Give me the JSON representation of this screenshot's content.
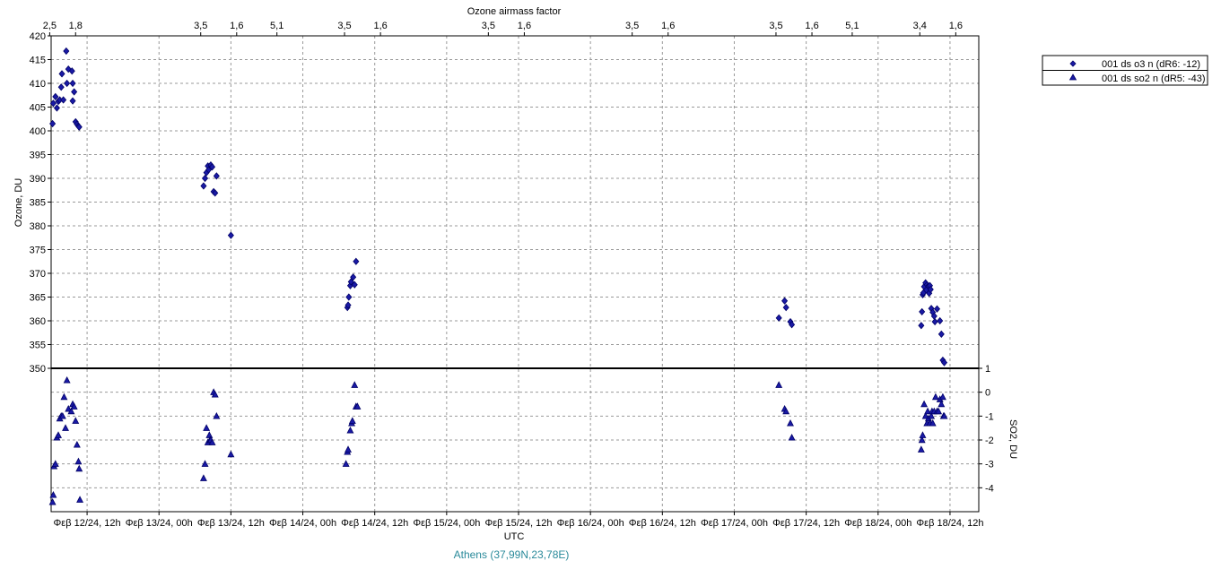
{
  "chart_data": {
    "type": "scatter",
    "top_axis_title": "Ozone airmass factor",
    "top_ticks": [
      {
        "t": 12.24,
        "label": "2,5"
      },
      {
        "t": 12.42,
        "label": "1,8"
      },
      {
        "t": 13.29,
        "label": "3,5"
      },
      {
        "t": 13.54,
        "label": "1,6"
      },
      {
        "t": 13.82,
        "label": "5,1"
      },
      {
        "t": 14.29,
        "label": "3,5"
      },
      {
        "t": 14.54,
        "label": "1,6"
      },
      {
        "t": 15.29,
        "label": "3,5"
      },
      {
        "t": 15.54,
        "label": "1,6"
      },
      {
        "t": 16.29,
        "label": "3,5"
      },
      {
        "t": 16.54,
        "label": "1,6"
      },
      {
        "t": 17.29,
        "label": "3,5"
      },
      {
        "t": 17.54,
        "label": "1,6"
      },
      {
        "t": 17.82,
        "label": "5,1"
      },
      {
        "t": 18.29,
        "label": "3,4"
      },
      {
        "t": 18.54,
        "label": "1,6"
      }
    ],
    "x_axis_title": "UTC",
    "x_ticks": [
      {
        "t": 12.5,
        "label": "Φεβ 12/24, 12h"
      },
      {
        "t": 13.0,
        "label": "Φεβ 13/24, 00h"
      },
      {
        "t": 13.5,
        "label": "Φεβ 13/24, 12h"
      },
      {
        "t": 14.0,
        "label": "Φεβ 14/24, 00h"
      },
      {
        "t": 14.5,
        "label": "Φεβ 14/24, 12h"
      },
      {
        "t": 15.0,
        "label": "Φεβ 15/24, 00h"
      },
      {
        "t": 15.5,
        "label": "Φεβ 15/24, 12h"
      },
      {
        "t": 16.0,
        "label": "Φεβ 16/24, 00h"
      },
      {
        "t": 16.5,
        "label": "Φεβ 16/24, 12h"
      },
      {
        "t": 17.0,
        "label": "Φεβ 17/24, 00h"
      },
      {
        "t": 17.5,
        "label": "Φεβ 17/24, 12h"
      },
      {
        "t": 18.0,
        "label": "Φεβ 18/24, 00h"
      },
      {
        "t": 18.5,
        "label": "Φεβ 18/24, 12h"
      }
    ],
    "xlim": [
      12.25,
      18.7
    ],
    "ozone_panel": {
      "ylabel": "Ozone, DU",
      "ylim": [
        350,
        420
      ],
      "yticks": [
        350,
        355,
        360,
        365,
        370,
        375,
        380,
        385,
        390,
        395,
        400,
        405,
        410,
        415,
        420
      ]
    },
    "so2_panel": {
      "ylabel": "SO2, DU",
      "ylim": [
        -5,
        1
      ],
      "yticks": [
        1,
        0,
        -1,
        -2,
        -3,
        -4
      ]
    },
    "grid": true,
    "legend_position": "top-right",
    "series": [
      {
        "name": "001 ds o3  n (dR6: -12)",
        "panel": "ozone",
        "marker": "diamond",
        "color": "#000099",
        "points": [
          [
            12.26,
            401.5
          ],
          [
            12.265,
            405.8
          ],
          [
            12.28,
            407.2
          ],
          [
            12.29,
            404.8
          ],
          [
            12.3,
            406.2
          ],
          [
            12.31,
            406.5
          ],
          [
            12.32,
            409.2
          ],
          [
            12.325,
            412.0
          ],
          [
            12.335,
            406.5
          ],
          [
            12.355,
            416.8
          ],
          [
            12.36,
            410.0
          ],
          [
            12.37,
            413.0
          ],
          [
            12.395,
            412.6
          ],
          [
            12.4,
            410.0
          ],
          [
            12.4,
            406.3
          ],
          [
            12.41,
            408.2
          ],
          [
            12.42,
            401.9
          ],
          [
            12.43,
            401.4
          ],
          [
            12.44,
            401.0
          ],
          [
            12.445,
            400.8
          ],
          [
            13.31,
            388.4
          ],
          [
            13.32,
            390.0
          ],
          [
            13.33,
            391.2
          ],
          [
            13.34,
            392.6
          ],
          [
            13.345,
            391.8
          ],
          [
            13.36,
            392.8
          ],
          [
            13.37,
            392.4
          ],
          [
            13.38,
            387.2
          ],
          [
            13.39,
            386.9
          ],
          [
            13.4,
            390.5
          ],
          [
            13.5,
            378.0
          ],
          [
            14.31,
            362.8
          ],
          [
            14.315,
            363.3
          ],
          [
            14.32,
            365.0
          ],
          [
            14.33,
            367.4
          ],
          [
            14.335,
            368.2
          ],
          [
            14.35,
            369.2
          ],
          [
            14.36,
            367.6
          ],
          [
            14.37,
            372.5
          ],
          [
            17.31,
            360.6
          ],
          [
            17.35,
            364.2
          ],
          [
            17.36,
            362.8
          ],
          [
            17.39,
            359.8
          ],
          [
            17.4,
            359.2
          ],
          [
            18.3,
            359.0
          ],
          [
            18.305,
            361.9
          ],
          [
            18.31,
            365.5
          ],
          [
            18.315,
            365.9
          ],
          [
            18.32,
            367.2
          ],
          [
            18.33,
            368.0
          ],
          [
            18.335,
            366.5
          ],
          [
            18.34,
            367.6
          ],
          [
            18.35,
            367.3
          ],
          [
            18.355,
            365.8
          ],
          [
            18.36,
            367.4
          ],
          [
            18.365,
            366.6
          ],
          [
            18.37,
            362.6
          ],
          [
            18.38,
            361.8
          ],
          [
            18.39,
            361.0
          ],
          [
            18.395,
            359.8
          ],
          [
            18.41,
            362.5
          ],
          [
            18.43,
            360.0
          ],
          [
            18.44,
            357.2
          ],
          [
            18.45,
            351.7
          ],
          [
            18.46,
            351.2
          ]
        ]
      },
      {
        "name": "001 ds so2 n (dR5: -43)",
        "panel": "so2",
        "marker": "triangle",
        "color": "#000099",
        "points": [
          [
            12.26,
            -4.6
          ],
          [
            12.265,
            -4.3
          ],
          [
            12.27,
            -3.1
          ],
          [
            12.28,
            -3.0
          ],
          [
            12.29,
            -1.9
          ],
          [
            12.3,
            -1.8
          ],
          [
            12.31,
            -1.1
          ],
          [
            12.32,
            -1.0
          ],
          [
            12.33,
            -1.0
          ],
          [
            12.34,
            -0.2
          ],
          [
            12.35,
            -1.5
          ],
          [
            12.36,
            0.5
          ],
          [
            12.37,
            -0.7
          ],
          [
            12.39,
            -0.8
          ],
          [
            12.4,
            -0.5
          ],
          [
            12.41,
            -0.6
          ],
          [
            12.42,
            -1.2
          ],
          [
            12.43,
            -2.2
          ],
          [
            12.44,
            -2.9
          ],
          [
            12.445,
            -3.2
          ],
          [
            12.45,
            -4.5
          ],
          [
            13.31,
            -3.6
          ],
          [
            13.32,
            -3.0
          ],
          [
            13.33,
            -1.5
          ],
          [
            13.34,
            -2.1
          ],
          [
            13.35,
            -1.8
          ],
          [
            13.355,
            -2.0
          ],
          [
            13.36,
            -2.0
          ],
          [
            13.37,
            -2.1
          ],
          [
            13.38,
            0.0
          ],
          [
            13.39,
            -0.1
          ],
          [
            13.4,
            -1.0
          ],
          [
            13.5,
            -2.6
          ],
          [
            14.3,
            -3.0
          ],
          [
            14.31,
            -2.5
          ],
          [
            14.315,
            -2.4
          ],
          [
            14.33,
            -1.6
          ],
          [
            14.34,
            -1.3
          ],
          [
            14.345,
            -1.2
          ],
          [
            14.36,
            0.3
          ],
          [
            14.37,
            -0.6
          ],
          [
            14.38,
            -0.6
          ],
          [
            17.31,
            0.3
          ],
          [
            17.35,
            -0.7
          ],
          [
            17.36,
            -0.8
          ],
          [
            17.39,
            -1.3
          ],
          [
            17.4,
            -1.9
          ],
          [
            18.3,
            -2.4
          ],
          [
            18.305,
            -2.0
          ],
          [
            18.31,
            -1.8
          ],
          [
            18.32,
            -0.5
          ],
          [
            18.33,
            -1.0
          ],
          [
            18.34,
            -1.3
          ],
          [
            18.345,
            -0.8
          ],
          [
            18.35,
            -1.1
          ],
          [
            18.36,
            -1.3
          ],
          [
            18.37,
            -1.0
          ],
          [
            18.375,
            -0.8
          ],
          [
            18.38,
            -1.3
          ],
          [
            18.39,
            -0.8
          ],
          [
            18.4,
            -0.2
          ],
          [
            18.41,
            -0.8
          ],
          [
            18.42,
            -0.8
          ],
          [
            18.43,
            -0.3
          ],
          [
            18.44,
            -0.5
          ],
          [
            18.45,
            -0.2
          ],
          [
            18.455,
            -1.0
          ],
          [
            18.46,
            -1.0
          ]
        ]
      }
    ],
    "station_label": "Athens (37,99N,23,78E)"
  }
}
